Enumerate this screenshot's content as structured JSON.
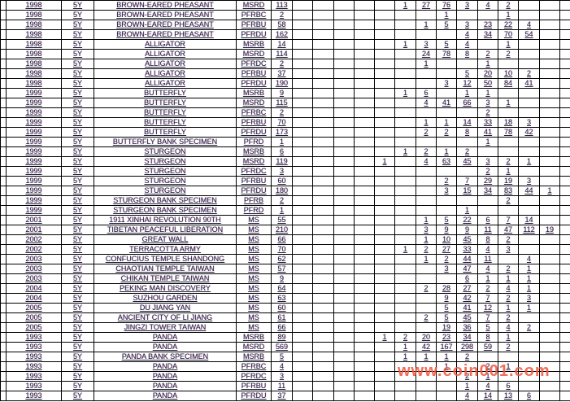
{
  "page": {
    "background": "#ffffff",
    "grid_color": "#000000",
    "text_color": "#1f1f38"
  },
  "watermark": {
    "text": "www.coin001.com",
    "color": "#f2553d"
  },
  "table": {
    "note": "cropped population-report style table; no header row visible; 14 narrow count columns follow the total column, last one cut off at right edge",
    "rows": [
      [
        "1998",
        "5Y",
        "BROWN-EARED PHEASANT",
        "MSRD",
        "113",
        "",
        "",
        "",
        "",
        "",
        "1",
        "27",
        "76",
        "3",
        "4",
        "2",
        "",
        "",
        ""
      ],
      [
        "1998",
        "5Y",
        "BROWN-EARED PHEASANT",
        "PFRBC",
        "2",
        "",
        "",
        "",
        "",
        "",
        "",
        "",
        "1",
        "",
        "",
        "1",
        "",
        "",
        ""
      ],
      [
        "1998",
        "5Y",
        "BROWN-EARED PHEASANT",
        "PFRBU",
        "58",
        "",
        "",
        "",
        "",
        "",
        "",
        "1",
        "5",
        "3",
        "23",
        "22",
        "4",
        "",
        ""
      ],
      [
        "1998",
        "5Y",
        "BROWN-EARED PHEASANT",
        "PFRDU",
        "162",
        "",
        "",
        "",
        "",
        "",
        "",
        "",
        "",
        "4",
        "34",
        "70",
        "54",
        "",
        ""
      ],
      [
        "1998",
        "5Y",
        "ALLIGATOR",
        "MSRB",
        "14",
        "",
        "",
        "",
        "",
        "",
        "1",
        "3",
        "5",
        "4",
        "",
        "1",
        "",
        "",
        ""
      ],
      [
        "1998",
        "5Y",
        "ALLIGATOR",
        "MSRD",
        "114",
        "",
        "",
        "",
        "",
        "",
        "",
        "24",
        "78",
        "8",
        "2",
        "2",
        "",
        "",
        ""
      ],
      [
        "1998",
        "5Y",
        "ALLIGATOR",
        "PFRDC",
        "2",
        "",
        "",
        "",
        "",
        "",
        "",
        "1",
        "",
        "",
        "1",
        "",
        "",
        "",
        ""
      ],
      [
        "1998",
        "5Y",
        "ALLIGATOR",
        "PFRBU",
        "37",
        "",
        "",
        "",
        "",
        "",
        "",
        "",
        "",
        "5",
        "20",
        "10",
        "2",
        "",
        ""
      ],
      [
        "1998",
        "5Y",
        "ALLIGATOR",
        "PFRDU",
        "190",
        "",
        "",
        "",
        "",
        "",
        "",
        "",
        "3",
        "12",
        "50",
        "84",
        "41",
        "",
        ""
      ],
      [
        "1999",
        "5Y",
        "BUTTERFLY",
        "MSRB",
        "9",
        "",
        "",
        "",
        "",
        "",
        "1",
        "6",
        "",
        "1",
        "1",
        "",
        "",
        "",
        ""
      ],
      [
        "1999",
        "5Y",
        "BUTTERFLY",
        "MSRD",
        "115",
        "",
        "",
        "",
        "",
        "",
        "",
        "4",
        "41",
        "66",
        "3",
        "1",
        "",
        "",
        ""
      ],
      [
        "1999",
        "5Y",
        "BUTTERFLY",
        "PFRBC",
        "2",
        "",
        "",
        "",
        "",
        "",
        "",
        "",
        "",
        "",
        "2",
        "",
        "",
        "",
        ""
      ],
      [
        "1999",
        "5Y",
        "BUTTERFLY",
        "PFRBU",
        "70",
        "",
        "",
        "",
        "",
        "",
        "",
        "1",
        "1",
        "14",
        "33",
        "18",
        "3",
        "",
        ""
      ],
      [
        "1999",
        "5Y",
        "BUTTERFLY",
        "PFRDU",
        "173",
        "",
        "",
        "",
        "",
        "",
        "",
        "2",
        "2",
        "8",
        "41",
        "78",
        "42",
        "",
        ""
      ],
      [
        "1999",
        "5Y",
        "BUTTERFLY BANK SPECIMEN",
        "PFRD",
        "1",
        "",
        "",
        "",
        "",
        "",
        "",
        "",
        "",
        "",
        "1",
        "",
        "",
        "",
        ""
      ],
      [
        "1999",
        "5Y",
        "STURGEON",
        "MSRB",
        "6",
        "",
        "",
        "",
        "",
        "",
        "1",
        "2",
        "1",
        "2",
        "",
        "",
        "",
        "",
        ""
      ],
      [
        "1999",
        "5Y",
        "STURGEON",
        "MSRD",
        "119",
        "",
        "",
        "",
        "",
        "1",
        "",
        "4",
        "63",
        "45",
        "3",
        "2",
        "1",
        "",
        ""
      ],
      [
        "1999",
        "5Y",
        "STURGEON",
        "PFRDC",
        "3",
        "",
        "",
        "",
        "",
        "",
        "",
        "",
        "",
        "",
        "2",
        "1",
        "",
        "",
        ""
      ],
      [
        "1999",
        "5Y",
        "STURGEON",
        "PFRBU",
        "60",
        "",
        "",
        "",
        "",
        "",
        "",
        "",
        "2",
        "7",
        "29",
        "19",
        "3",
        "",
        ""
      ],
      [
        "1999",
        "5Y",
        "STURGEON",
        "PFRDU",
        "180",
        "",
        "",
        "",
        "",
        "",
        "",
        "",
        "3",
        "15",
        "34",
        "83",
        "44",
        "1",
        ""
      ],
      [
        "1999",
        "5Y",
        "STURGEON BANK SPECIMEN",
        "PFRB",
        "2",
        "",
        "",
        "",
        "",
        "",
        "",
        "",
        "",
        "",
        "",
        "2",
        "",
        "",
        ""
      ],
      [
        "1999",
        "5Y",
        "STURGEON BANK SPECIMEN",
        "PFRD",
        "1",
        "",
        "",
        "",
        "",
        "",
        "",
        "",
        "",
        "1",
        "",
        "",
        "",
        "",
        ""
      ],
      [
        "2001",
        "5Y",
        "1911 XINHAI REVOLUTION 90TH",
        "MS",
        "55",
        "",
        "",
        "",
        "",
        "",
        "",
        "1",
        "5",
        "22",
        "6",
        "7",
        "14",
        "",
        ""
      ],
      [
        "2001",
        "5Y",
        "TIBETAN PEACEFUL LIBERATION",
        "MS",
        "210",
        "",
        "",
        "",
        "",
        "",
        "",
        "3",
        "9",
        "9",
        "11",
        "47",
        "112",
        "19",
        ""
      ],
      [
        "2002",
        "5Y",
        "GREAT WALL",
        "MS",
        "66",
        "",
        "",
        "",
        "",
        "",
        "",
        "1",
        "10",
        "45",
        "8",
        "2",
        "",
        "",
        ""
      ],
      [
        "2002",
        "5Y",
        "TERRACOTTA ARMY",
        "MS",
        "70",
        "",
        "",
        "",
        "",
        "",
        "1",
        "2",
        "27",
        "33",
        "4",
        "3",
        "",
        "",
        ""
      ],
      [
        "2003",
        "5Y",
        "CONFUCIUS TEMPLE SHANDONG",
        "MS",
        "62",
        "",
        "",
        "",
        "",
        "",
        "",
        "1",
        "2",
        "44",
        "11",
        "",
        "4",
        "",
        ""
      ],
      [
        "2003",
        "5Y",
        "CHAOTIAN TEMPLE TAIWAN",
        "MS",
        "57",
        "",
        "",
        "",
        "",
        "",
        "",
        "",
        "3",
        "47",
        "4",
        "2",
        "1",
        "",
        ""
      ],
      [
        "2003",
        "5Y",
        "CHIKAN TEMPLE TAIWAN",
        "MS",
        "9",
        "",
        "",
        "",
        "",
        "",
        "",
        "",
        "",
        "6",
        "1",
        "1",
        "1",
        "",
        ""
      ],
      [
        "2004",
        "5Y",
        "PEKING MAN DISCOVERY",
        "MS",
        "64",
        "",
        "",
        "",
        "",
        "",
        "",
        "2",
        "28",
        "27",
        "2",
        "4",
        "1",
        "",
        ""
      ],
      [
        "2004",
        "5Y",
        "SUZHOU GARDEN",
        "MS",
        "63",
        "",
        "",
        "",
        "",
        "",
        "",
        "",
        "9",
        "42",
        "7",
        "2",
        "3",
        "",
        ""
      ],
      [
        "2005",
        "5Y",
        "DU JIANG YAN",
        "MS",
        "60",
        "",
        "",
        "",
        "",
        "",
        "",
        "",
        "5",
        "41",
        "12",
        "1",
        "1",
        "",
        ""
      ],
      [
        "2005",
        "5Y",
        "ANCIENT CITY OF LI JIANG",
        "MS",
        "61",
        "",
        "",
        "",
        "",
        "",
        "",
        "2",
        "5",
        "45",
        "7",
        "2",
        "",
        "",
        ""
      ],
      [
        "2005",
        "5Y",
        "JINGZI TOWER TAIWAN",
        "MS",
        "66",
        "",
        "",
        "",
        "",
        "",
        "",
        "",
        "19",
        "36",
        "5",
        "4",
        "2",
        "",
        ""
      ],
      [
        "1993",
        "5Y",
        "PANDA",
        "MSRB",
        "89",
        "",
        "",
        "",
        "",
        "1",
        "2",
        "20",
        "23",
        "34",
        "8",
        "1",
        "",
        "",
        ""
      ],
      [
        "1993",
        "5Y",
        "PANDA",
        "MSRD",
        "569",
        "",
        "",
        "",
        "",
        "",
        "1",
        "42",
        "167",
        "298",
        "59",
        "2",
        "",
        "",
        ""
      ],
      [
        "1993",
        "5Y",
        "PANDA BANK SPECIMEN",
        "MSRB",
        "5",
        "",
        "",
        "",
        "",
        "",
        "1",
        "1",
        "1",
        "2",
        "",
        "",
        "",
        "",
        ""
      ],
      [
        "1993",
        "5Y",
        "PANDA",
        "PFRBC",
        "4",
        "",
        "",
        "",
        "",
        "",
        "",
        "",
        "1",
        "",
        "2",
        "1",
        "",
        "",
        ""
      ],
      [
        "1993",
        "5Y",
        "PANDA",
        "PFRDC",
        "3",
        "",
        "",
        "",
        "",
        "",
        "",
        "",
        "",
        "2",
        "1",
        "",
        "",
        "",
        ""
      ],
      [
        "1993",
        "5Y",
        "PANDA",
        "PFRBU",
        "11",
        "",
        "",
        "",
        "",
        "",
        "",
        "",
        "",
        "1",
        "4",
        "6",
        "",
        "",
        ""
      ],
      [
        "1993",
        "5Y",
        "PANDA",
        "PFRDU",
        "37",
        "",
        "",
        "",
        "",
        "",
        "",
        "",
        "",
        "4",
        "14",
        "13",
        "6",
        "",
        ""
      ]
    ]
  }
}
